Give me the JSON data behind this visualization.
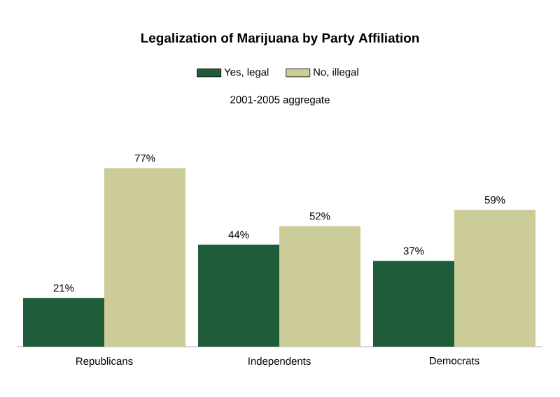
{
  "chart_data": {
    "type": "bar",
    "title": "Legalization of Marijuana by Party Affiliation",
    "subtitle": "2001-2005 aggregate",
    "categories": [
      "Republicans",
      "Independents",
      "Democrats"
    ],
    "series": [
      {
        "name": "Yes, legal",
        "color": "#1e5c3a",
        "values": [
          21,
          44,
          37
        ],
        "value_labels": [
          "21%",
          "44%",
          "37%"
        ]
      },
      {
        "name": "No, illegal",
        "color": "#cccc99",
        "values": [
          77,
          52,
          59
        ],
        "value_labels": [
          "77%",
          "52%",
          "59%"
        ]
      }
    ],
    "legend": "top"
  }
}
